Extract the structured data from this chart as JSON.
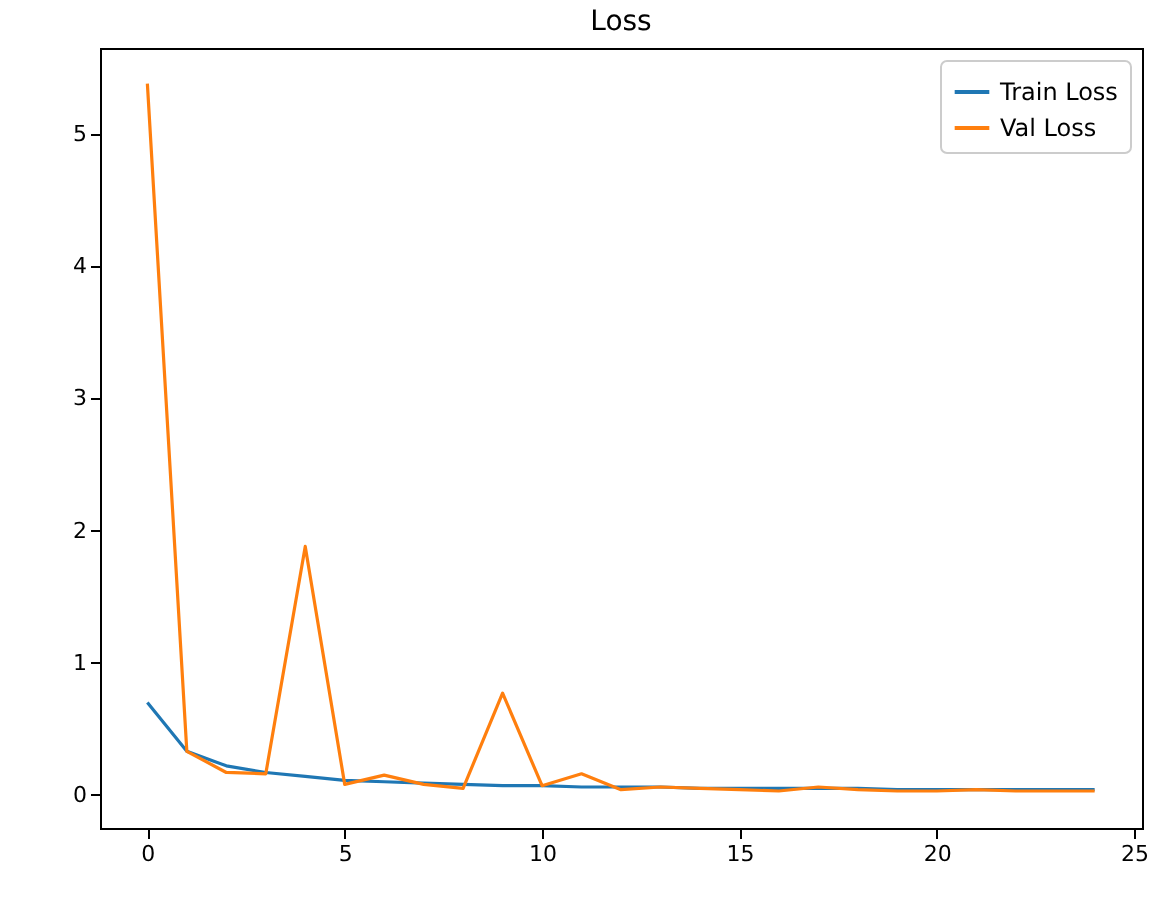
{
  "chart_data": {
    "type": "line",
    "title": "Loss",
    "x": [
      0,
      1,
      2,
      3,
      4,
      5,
      6,
      7,
      8,
      9,
      10,
      11,
      12,
      13,
      14,
      15,
      16,
      17,
      18,
      19,
      20,
      21,
      22,
      23,
      24
    ],
    "series": [
      {
        "name": "Train Loss",
        "color": "#1f77b4",
        "values": [
          0.7,
          0.33,
          0.22,
          0.17,
          0.14,
          0.11,
          0.1,
          0.09,
          0.08,
          0.07,
          0.07,
          0.06,
          0.06,
          0.06,
          0.05,
          0.05,
          0.05,
          0.05,
          0.05,
          0.04,
          0.04,
          0.04,
          0.04,
          0.04,
          0.04
        ]
      },
      {
        "name": "Val Loss",
        "color": "#ff7f0e",
        "values": [
          5.38,
          0.33,
          0.17,
          0.16,
          1.88,
          0.08,
          0.15,
          0.08,
          0.05,
          0.77,
          0.07,
          0.16,
          0.04,
          0.06,
          0.05,
          0.04,
          0.03,
          0.06,
          0.04,
          0.03,
          0.03,
          0.04,
          0.03,
          0.03,
          0.03
        ]
      }
    ],
    "xlim": [
      -1.2,
      25.2
    ],
    "xticks": [
      0,
      5,
      10,
      15,
      20,
      25
    ],
    "ylim": [
      -0.25,
      5.65
    ],
    "yticks": [
      0,
      1,
      2,
      3,
      4,
      5
    ],
    "grid": false,
    "legend": "top right",
    "line_style": "solid",
    "marker": "none"
  }
}
